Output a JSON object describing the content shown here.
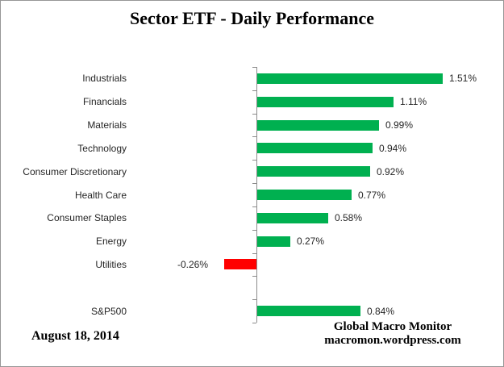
{
  "header": {
    "title": "Sector ETF - Daily Performance"
  },
  "footer": {
    "date": "August 18, 2014",
    "attribution_line1": "Global Macro Monitor",
    "attribution_line2": "macromon.wordpress.com"
  },
  "chart_data": {
    "type": "bar",
    "orientation": "horizontal",
    "title": "Sector ETF - Daily Performance",
    "categories": [
      "Industrials",
      "Financials",
      "Materials",
      "Technology",
      "Consumer Discretionary",
      "Health Care",
      "Consumer Staples",
      "Energy",
      "Utilities",
      "S&P500"
    ],
    "values": [
      1.51,
      1.11,
      0.99,
      0.94,
      0.92,
      0.77,
      0.58,
      0.27,
      -0.26,
      0.84
    ],
    "value_labels": [
      "1.51%",
      "1.11%",
      "0.99%",
      "0.94%",
      "0.92%",
      "0.77%",
      "0.58%",
      "0.27%",
      "-0.26%",
      "0.84%"
    ],
    "separator_before_category": "S&P500",
    "xlabel": "",
    "ylabel": "",
    "xlim": [
      -1.05,
      2.0
    ],
    "grid": false,
    "legend": false,
    "data_labels": true,
    "positive_color": "#00B050",
    "negative_color": "#FF0000",
    "axis_color": "#8C8C8C"
  }
}
